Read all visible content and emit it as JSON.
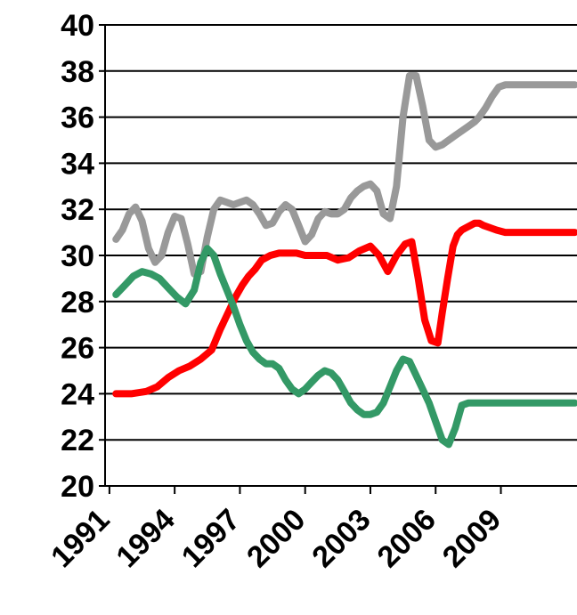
{
  "chart_data": {
    "type": "line",
    "title": "",
    "xlabel": "",
    "ylabel": "",
    "xlim": [
      1990.8,
      2012.5
    ],
    "ylim": [
      20,
      40
    ],
    "grid": "horizontal",
    "legend": "none",
    "x_ticks": [
      1991,
      1994,
      1997,
      2000,
      2003,
      2006,
      2009
    ],
    "x_tick_labels": [
      "1991",
      "1994",
      "1997",
      "2000",
      "2003",
      "2006",
      "2009"
    ],
    "y_ticks": [
      20,
      22,
      24,
      26,
      28,
      30,
      32,
      34,
      36,
      38,
      40
    ],
    "y_tick_labels": [
      "20",
      "22",
      "24",
      "26",
      "28",
      "30",
      "32",
      "34",
      "36",
      "38",
      "40"
    ],
    "series": [
      {
        "color": "#999999",
        "x": [
          1991.3,
          1991.6,
          1991.9,
          1992.2,
          1992.5,
          1992.8,
          1993.1,
          1993.4,
          1993.7,
          1994.0,
          1994.3,
          1994.6,
          1994.9,
          1995.2,
          1995.5,
          1995.8,
          1996.1,
          1996.4,
          1996.7,
          1997.0,
          1997.3,
          1997.6,
          1997.9,
          1998.2,
          1998.5,
          1998.8,
          1999.1,
          1999.4,
          1999.7,
          2000.0,
          2000.3,
          2000.6,
          2000.9,
          2001.2,
          2001.5,
          2001.8,
          2002.1,
          2002.4,
          2002.7,
          2003.0,
          2003.3,
          2003.6,
          2003.9,
          2004.2,
          2004.5,
          2004.8,
          2005.1,
          2005.4,
          2005.7,
          2006.0,
          2006.3,
          2006.6,
          2006.9,
          2007.2,
          2007.5,
          2007.8,
          2008.0,
          2008.3,
          2008.6,
          2008.9,
          2009.2,
          2009.5,
          2009.8,
          2010.1,
          2010.4,
          2010.7,
          2011.0,
          2011.3,
          2011.6,
          2011.9,
          2012.2,
          2012.4
        ],
        "y": [
          30.7,
          31.1,
          31.8,
          32.1,
          31.5,
          30.3,
          29.7,
          30.0,
          31.0,
          31.7,
          31.6,
          30.5,
          29.2,
          29.3,
          30.8,
          32.0,
          32.4,
          32.3,
          32.2,
          32.3,
          32.4,
          32.2,
          31.8,
          31.3,
          31.4,
          31.9,
          32.2,
          32.0,
          31.3,
          30.6,
          30.9,
          31.6,
          31.9,
          31.8,
          31.8,
          32.0,
          32.5,
          32.8,
          33.0,
          33.1,
          32.8,
          31.8,
          31.6,
          33.0,
          36.0,
          37.8,
          37.8,
          36.5,
          35.0,
          34.7,
          34.8,
          35.0,
          35.2,
          35.4,
          35.6,
          35.8,
          36.0,
          36.4,
          36.9,
          37.3,
          37.4,
          37.4,
          37.4,
          37.4,
          37.4,
          37.4,
          37.4,
          37.4,
          37.4,
          37.4,
          37.4,
          37.4
        ]
      },
      {
        "color": "#ff0000",
        "x": [
          1991.3,
          1992.0,
          1992.7,
          1993.2,
          1993.7,
          1994.2,
          1994.7,
          1995.2,
          1995.7,
          1996.1,
          1996.5,
          1996.8,
          1997.1,
          1997.4,
          1997.7,
          1998.0,
          1998.4,
          1998.8,
          1999.2,
          1999.6,
          2000.0,
          2000.5,
          2001.0,
          2001.5,
          2002.0,
          2002.5,
          2003.0,
          2003.4,
          2003.8,
          2004.2,
          2004.6,
          2004.9,
          2005.2,
          2005.5,
          2005.8,
          2006.1,
          2006.3,
          2006.55,
          2006.8,
          2007.0,
          2007.2,
          2007.4,
          2007.6,
          2007.8,
          2008.0,
          2008.2,
          2008.5,
          2008.8,
          2009.2,
          2009.6,
          2010.0,
          2010.4,
          2010.8,
          2011.2,
          2011.6,
          2012.0,
          2012.4
        ],
        "y": [
          24.0,
          24.0,
          24.1,
          24.3,
          24.7,
          25.0,
          25.2,
          25.5,
          25.9,
          26.8,
          27.6,
          28.2,
          28.7,
          29.1,
          29.4,
          29.8,
          30.0,
          30.1,
          30.1,
          30.1,
          30.0,
          30.0,
          30.0,
          29.8,
          29.9,
          30.2,
          30.4,
          30.0,
          29.3,
          30.0,
          30.5,
          30.6,
          29.0,
          27.2,
          26.3,
          26.2,
          27.5,
          29.0,
          30.4,
          30.9,
          31.1,
          31.2,
          31.3,
          31.4,
          31.4,
          31.3,
          31.2,
          31.1,
          31.0,
          31.0,
          31.0,
          31.0,
          31.0,
          31.0,
          31.0,
          31.0,
          31.0
        ]
      },
      {
        "color": "#339966",
        "x": [
          1991.3,
          1991.7,
          1992.1,
          1992.5,
          1992.9,
          1993.3,
          1993.7,
          1994.1,
          1994.5,
          1994.9,
          1995.2,
          1995.5,
          1995.8,
          1996.1,
          1996.4,
          1996.7,
          1997.0,
          1997.3,
          1997.6,
          1997.9,
          1998.2,
          1998.5,
          1998.8,
          1999.1,
          1999.4,
          1999.7,
          2000.0,
          2000.3,
          2000.6,
          2000.9,
          2001.2,
          2001.5,
          2001.8,
          2002.1,
          2002.4,
          2002.7,
          2003.0,
          2003.3,
          2003.6,
          2003.9,
          2004.2,
          2004.5,
          2004.8,
          2005.1,
          2005.4,
          2005.7,
          2006.0,
          2006.3,
          2006.6,
          2006.9,
          2007.2,
          2007.5,
          2007.8,
          2008.1,
          2008.4,
          2008.7,
          2009.0,
          2009.3,
          2009.6,
          2009.9,
          2010.2,
          2010.5,
          2010.8,
          2011.1,
          2011.4,
          2011.7,
          2012.0,
          2012.4
        ],
        "y": [
          28.3,
          28.7,
          29.1,
          29.3,
          29.2,
          29.0,
          28.6,
          28.2,
          27.9,
          28.5,
          29.7,
          30.3,
          30.0,
          29.2,
          28.5,
          27.8,
          27.0,
          26.3,
          25.8,
          25.5,
          25.3,
          25.3,
          25.1,
          24.6,
          24.2,
          24.0,
          24.2,
          24.5,
          24.8,
          25.0,
          24.9,
          24.6,
          24.1,
          23.6,
          23.3,
          23.1,
          23.1,
          23.2,
          23.6,
          24.3,
          25.0,
          25.5,
          25.4,
          24.8,
          24.2,
          23.6,
          22.8,
          22.0,
          21.8,
          22.5,
          23.5,
          23.6,
          23.6,
          23.6,
          23.6,
          23.6,
          23.6,
          23.6,
          23.6,
          23.6,
          23.6,
          23.6,
          23.6,
          23.6,
          23.6,
          23.6,
          23.6,
          23.6
        ]
      }
    ]
  }
}
